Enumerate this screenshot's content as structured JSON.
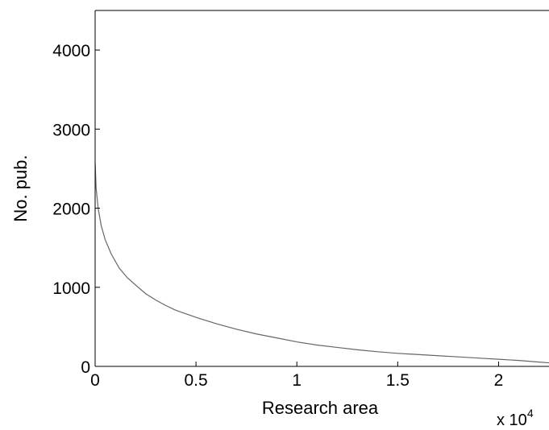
{
  "chart_data": {
    "type": "line",
    "xlabel": "Research area",
    "ylabel": "No. pub.",
    "xlim": [
      0,
      22500
    ],
    "ylim": [
      0,
      4500
    ],
    "x_ticks": [
      0,
      5000,
      10000,
      15000,
      20000
    ],
    "x_tick_labels": [
      "0",
      "0.5",
      "1",
      "1.5",
      "2"
    ],
    "x_exponent_prefix": "x 10",
    "x_exponent_power": "4",
    "y_ticks": [
      0,
      1000,
      2000,
      3000,
      4000
    ],
    "y_tick_labels": [
      "0",
      "1000",
      "2000",
      "3000",
      "4000"
    ],
    "grid": false,
    "line_color": "#666666",
    "series": [
      {
        "x": [
          0,
          50,
          150,
          300,
          500,
          800,
          1200,
          1600,
          2000,
          2500,
          3000,
          3500,
          4000,
          5000,
          6000,
          7000,
          8000,
          9000,
          10000,
          11000,
          12000,
          13000,
          14000,
          15000,
          16000,
          17000,
          18000,
          19000,
          20000,
          21000,
          22000,
          22500
        ],
        "y": [
          2580,
          2250,
          2000,
          1780,
          1600,
          1420,
          1240,
          1120,
          1030,
          920,
          840,
          770,
          710,
          620,
          540,
          470,
          410,
          360,
          310,
          270,
          240,
          210,
          185,
          165,
          150,
          135,
          120,
          105,
          90,
          75,
          55,
          45
        ]
      }
    ]
  }
}
